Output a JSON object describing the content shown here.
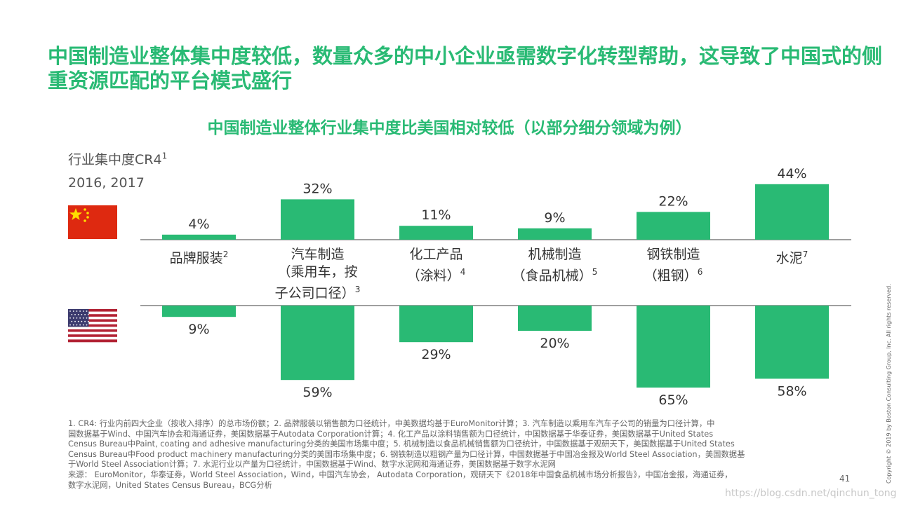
{
  "title": "中国制造业整体集中度较低，数量众多的中小企业亟需数字化转型帮助，这导致了中国式的侧重资源匹配的平台模式盛行",
  "subtitle": "中国制造业整体行业集中度比美国相对较低（以部分细分领域为例）",
  "ylabel": {
    "text": "行业集中度CR4",
    "sup": "1"
  },
  "years": "2016, 2017",
  "chart_data": {
    "type": "bar",
    "ylabel": "行业集中度CR4",
    "categories": [
      {
        "lines": [
          "品牌服装"
        ],
        "sup": "2"
      },
      {
        "lines": [
          "汽车制造",
          "（乘用车，按",
          "子公司口径）"
        ],
        "sup": "3"
      },
      {
        "lines": [
          "化工产品",
          "（涂料）"
        ],
        "sup": "4"
      },
      {
        "lines": [
          "机械制造",
          "（食品机械）"
        ],
        "sup": "5"
      },
      {
        "lines": [
          "钢铁制造",
          "（粗钢）"
        ],
        "sup": "6"
      },
      {
        "lines": [
          "水泥"
        ],
        "sup": "7"
      }
    ],
    "series": [
      {
        "name": "China",
        "values": [
          4,
          32,
          11,
          9,
          22,
          44
        ],
        "labels": [
          "4%",
          "32%",
          "11%",
          "9%",
          "22%",
          "44%"
        ]
      },
      {
        "name": "USA",
        "values": [
          9,
          59,
          29,
          20,
          65,
          58
        ],
        "labels": [
          "9%",
          "59%",
          "29%",
          "20%",
          "65%",
          "58%"
        ]
      }
    ],
    "colors": {
      "bar": "#29ba74",
      "axis": "#666666"
    }
  },
  "footnote": [
    "1. CR4: 行业内前四大企业（按收入排序）的总市场份额；2. 品牌服装以销售额为口径统计，中美数据均基于EuroMonitor计算；3. 汽车制造以乘用车汽车子公司的销量为口径计算，中",
    "国数据基于Wind、中国汽车协会和海通证券，美国数据基于Autodata Corporation计算；4. 化工产品以涂料销售额为口径统计，中国数据基于华泰证券，美国数据基于United States",
    "Census Bureau中Paint, coating and adhesive manufacturing分类的美国市场集中度；5. 机械制造以食品机械销售额为口径统计，中国数据基于观研天下，美国数据基于United States",
    "Census Bureau中Food product machinery manufacturing分类的美国市场集中度；6. 钢铁制造以粗钢产量为口径计算，中国数据基于中国冶金报及World Steel Association，美国数据基",
    "于World Steel Association计算；7. 水泥行业以产量为口径统计，中国数据基于Wind、数字水泥网和海通证券，美国数据基于数字水泥网",
    "来源： EuroMonitor，华泰证券，World Steel Association，Wind，中国汽车协会， Autodata Corporation，观研天下《2018年中国食品机械市场分析报告》，中国冶金报，海通证券，",
    "数字水泥网，United States Census Bureau，BCG分析"
  ],
  "page_number": "41",
  "copyright": "Copyright © 2019 by Boston Consulting Group, Inc. All rights reserved.",
  "watermark": "https://blog.csdn.net/qinchun_tong"
}
